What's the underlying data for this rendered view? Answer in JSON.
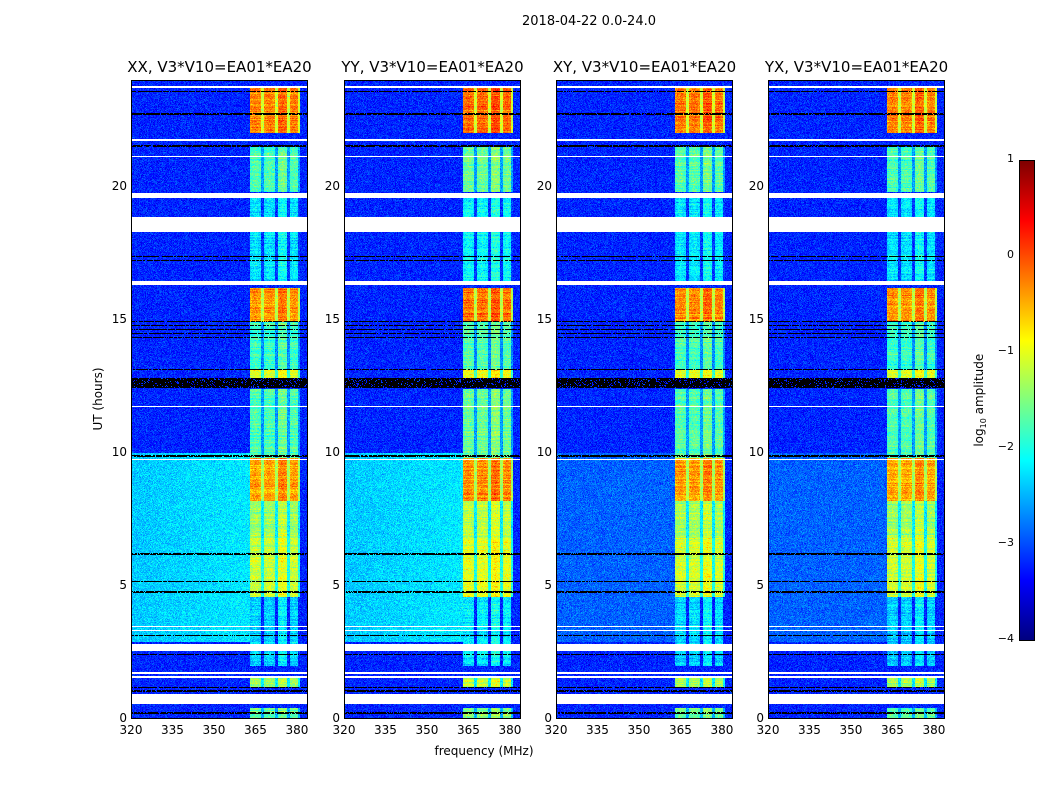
{
  "title": "2018-04-22 0.0-24.0",
  "ylabel": "UT (hours)",
  "xlabel": "frequency (MHz)",
  "colorbar": {
    "label_prefix": "log",
    "label_sub": "10",
    "label_suffix": " amplitude",
    "ticks": [
      "1",
      "0",
      "−1",
      "−2",
      "−3",
      "−4"
    ],
    "range": [
      -4,
      1
    ],
    "colormap": "jet"
  },
  "chart_data": {
    "type": "heatmap",
    "panels": [
      {
        "title": "XX, V3*V10=EA01*EA20",
        "gain": 0.0,
        "quiet_low_freq_bright": true
      },
      {
        "title": "YY, V3*V10=EA01*EA20",
        "gain": 0.15,
        "quiet_low_freq_bright": true
      },
      {
        "title": "XY, V3*V10=EA01*EA20",
        "gain": 0.05,
        "quiet_low_freq_bright": false
      },
      {
        "title": "YX, V3*V10=EA01*EA20",
        "gain": 0.0,
        "quiet_low_freq_bright": false
      }
    ],
    "xlim": [
      320,
      384
    ],
    "ylim": [
      0,
      24
    ],
    "xticks": [
      "320",
      "335",
      "350",
      "365",
      "380"
    ],
    "xtick_values": [
      320,
      335,
      350,
      365,
      380
    ],
    "yticks": [
      "0",
      "5",
      "10",
      "15",
      "20"
    ],
    "ytick_values": [
      0,
      5,
      10,
      15,
      20
    ],
    "background_log_amp": -3.2,
    "low_freq_bright_region": {
      "hours": [
        2.9,
        10.0
      ],
      "freq_max": 363,
      "log_amp": -2.4
    },
    "subbands_mhz": [
      [
        363,
        367
      ],
      [
        368,
        372
      ],
      [
        373,
        376.5
      ],
      [
        377.5,
        380.5
      ]
    ],
    "band_activity": [
      {
        "hours": [
          0,
          0.4
        ],
        "log_amp": -1.6
      },
      {
        "hours": [
          1.2,
          1.6
        ],
        "log_amp": -1.3
      },
      {
        "hours": [
          2.0,
          4.6
        ],
        "log_amp": -2.3
      },
      {
        "hours": [
          4.6,
          6.8
        ],
        "log_amp": -1.1
      },
      {
        "hours": [
          6.8,
          8.2
        ],
        "log_amp": -1.3
      },
      {
        "hours": [
          8.2,
          9.8
        ],
        "log_amp": -0.4
      },
      {
        "hours": [
          9.8,
          12.4
        ],
        "log_amp": -1.7
      },
      {
        "hours": [
          12.8,
          13.1
        ],
        "log_amp": -1.0
      },
      {
        "hours": [
          13.1,
          14.9
        ],
        "log_amp": -1.8
      },
      {
        "hours": [
          14.9,
          16.2
        ],
        "log_amp": -0.3
      },
      {
        "hours": [
          16.4,
          19.6
        ],
        "log_amp": -2.2
      },
      {
        "hours": [
          19.8,
          21.5
        ],
        "log_amp": -1.7
      },
      {
        "hours": [
          22.0,
          23.7
        ],
        "log_amp": -0.2
      }
    ],
    "flagged_rows_hours": [
      [
        0.55,
        0.95
      ],
      [
        1.55,
        1.62
      ],
      [
        1.7,
        1.78
      ],
      [
        2.55,
        2.8
      ],
      [
        3.3,
        3.36
      ],
      [
        3.45,
        3.5
      ],
      [
        9.72,
        9.78
      ],
      [
        11.7,
        11.75
      ],
      [
        16.3,
        16.45
      ],
      [
        18.3,
        18.85
      ],
      [
        19.55,
        19.75
      ],
      [
        21.1,
        21.15
      ],
      [
        21.7,
        21.8
      ],
      [
        23.7,
        23.78
      ]
    ],
    "dark_rows_hours": [
      [
        0.2,
        0.25
      ],
      [
        1.0,
        1.08
      ],
      [
        1.15,
        1.2
      ],
      [
        2.4,
        2.45
      ],
      [
        3.1,
        3.15
      ],
      [
        4.75,
        4.82
      ],
      [
        5.15,
        5.2
      ],
      [
        6.15,
        6.22
      ],
      [
        9.85,
        9.9
      ],
      [
        12.45,
        12.8
      ],
      [
        13.1,
        13.15
      ],
      [
        14.3,
        14.35
      ],
      [
        14.45,
        14.5
      ],
      [
        14.6,
        14.65
      ],
      [
        14.75,
        14.8
      ],
      [
        14.9,
        14.95
      ],
      [
        17.2,
        17.25
      ],
      [
        17.35,
        17.4
      ],
      [
        21.5,
        21.56
      ],
      [
        22.7,
        22.75
      ],
      [
        23.55,
        23.6
      ]
    ]
  }
}
